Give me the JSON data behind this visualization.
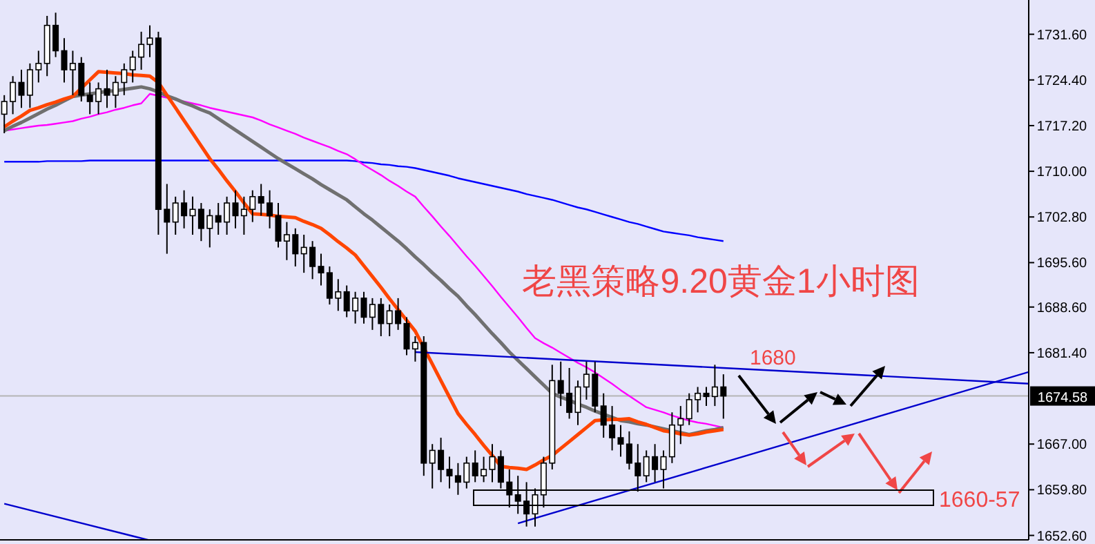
{
  "chart_data": {
    "type": "candlestick",
    "title": "老黑策略9.20黄金1小时图",
    "categories": [
      null,
      null,
      null,
      null,
      null,
      null,
      null,
      null,
      null,
      null,
      null,
      null,
      null,
      null,
      null,
      null,
      null,
      null,
      null,
      null,
      null,
      null,
      null,
      null,
      null,
      null,
      null,
      null,
      null,
      null,
      null,
      null,
      null,
      null,
      null,
      null,
      null,
      null,
      null,
      null,
      null,
      null,
      null,
      null,
      null,
      null,
      null,
      null,
      null,
      null,
      null,
      null,
      null,
      null,
      null,
      null,
      null,
      null,
      null,
      null,
      null,
      null,
      null,
      null,
      null,
      null,
      null,
      null,
      null,
      null,
      null,
      null,
      null,
      null,
      null,
      null,
      null,
      null,
      null,
      null,
      null,
      null,
      null,
      null,
      null
    ],
    "ohlc": [
      [
        1719,
        1722,
        1716,
        1721
      ],
      [
        1721,
        1725,
        1719,
        1724
      ],
      [
        1724,
        1726,
        1720,
        1722
      ],
      [
        1722,
        1727,
        1720,
        1726
      ],
      [
        1726,
        1729,
        1724,
        1727
      ],
      [
        1727,
        1734.5,
        1725,
        1733
      ],
      [
        1733,
        1735,
        1728,
        1729
      ],
      [
        1729,
        1731,
        1724,
        1726
      ],
      [
        1726,
        1729,
        1722,
        1727
      ],
      [
        1727,
        1728,
        1721,
        1722
      ],
      [
        1722,
        1724,
        1719,
        1721
      ],
      [
        1721,
        1724,
        1719,
        1723
      ],
      [
        1723,
        1726,
        1720,
        1722
      ],
      [
        1722,
        1725,
        1720,
        1724
      ],
      [
        1724,
        1727,
        1722,
        1726
      ],
      [
        1726,
        1729,
        1724,
        1728
      ],
      [
        1728,
        1732,
        1726,
        1730
      ],
      [
        1730,
        1733,
        1728,
        1731
      ],
      [
        1731,
        1732,
        1700,
        1704
      ],
      [
        1704,
        1708,
        1697,
        1702
      ],
      [
        1702,
        1706,
        1700,
        1705
      ],
      [
        1705,
        1707,
        1701,
        1703
      ],
      [
        1703,
        1706,
        1700,
        1704
      ],
      [
        1704,
        1705,
        1699,
        1701
      ],
      [
        1701,
        1704,
        1698,
        1703
      ],
      [
        1703,
        1705,
        1700,
        1702
      ],
      [
        1702,
        1706,
        1700,
        1705
      ],
      [
        1705,
        1707,
        1701,
        1703
      ],
      [
        1703,
        1706,
        1700,
        1704
      ],
      [
        1704,
        1707,
        1702,
        1706
      ],
      [
        1706,
        1708,
        1703,
        1705
      ],
      [
        1705,
        1707,
        1701,
        1703
      ],
      [
        1703,
        1705,
        1698,
        1699
      ],
      [
        1699,
        1702,
        1696,
        1700
      ],
      [
        1700,
        1701,
        1695,
        1697
      ],
      [
        1697,
        1700,
        1694,
        1698
      ],
      [
        1698,
        1699,
        1693,
        1695
      ],
      [
        1695,
        1697,
        1692,
        1694
      ],
      [
        1694,
        1695,
        1689,
        1690
      ],
      [
        1690,
        1693,
        1688,
        1691
      ],
      [
        1691,
        1692,
        1687,
        1688
      ],
      [
        1688,
        1691,
        1686,
        1690
      ],
      [
        1690,
        1691,
        1686,
        1687
      ],
      [
        1687,
        1690,
        1685,
        1689
      ],
      [
        1689,
        1690,
        1684,
        1686
      ],
      [
        1686,
        1689,
        1684,
        1688
      ],
      [
        1688,
        1690,
        1685,
        1686
      ],
      [
        1686,
        1687,
        1681,
        1682
      ],
      [
        1682,
        1684,
        1680,
        1683
      ],
      [
        1683,
        1684,
        1662,
        1664
      ],
      [
        1664,
        1667,
        1660,
        1666
      ],
      [
        1666,
        1668,
        1661,
        1663
      ],
      [
        1663,
        1665,
        1660,
        1662
      ],
      [
        1662,
        1664,
        1659,
        1661
      ],
      [
        1661,
        1665,
        1660,
        1664
      ],
      [
        1664,
        1666,
        1661,
        1662
      ],
      [
        1662,
        1665,
        1661,
        1663
      ],
      [
        1663,
        1667,
        1661,
        1665
      ],
      [
        1665,
        1666,
        1660,
        1661
      ],
      [
        1661,
        1663,
        1657,
        1659
      ],
      [
        1659,
        1662,
        1656,
        1658
      ],
      [
        1658,
        1661,
        1654,
        1656
      ],
      [
        1656,
        1660,
        1654,
        1659
      ],
      [
        1659,
        1665,
        1657,
        1664
      ],
      [
        1664,
        1679.5,
        1663,
        1677
      ],
      [
        1677,
        1680,
        1673,
        1675
      ],
      [
        1675,
        1679,
        1671,
        1672
      ],
      [
        1672,
        1677,
        1670,
        1676
      ],
      [
        1676,
        1680,
        1674,
        1678
      ],
      [
        1678,
        1680,
        1672,
        1673
      ],
      [
        1673,
        1675,
        1668,
        1670
      ],
      [
        1670,
        1673,
        1666,
        1668
      ],
      [
        1668,
        1670,
        1665,
        1667
      ],
      [
        1667,
        1669,
        1663,
        1664
      ],
      [
        1664,
        1667,
        1659.5,
        1662
      ],
      [
        1662,
        1666,
        1661,
        1665
      ],
      [
        1665,
        1667,
        1661,
        1663
      ],
      [
        1663,
        1666,
        1660,
        1665
      ],
      [
        1665,
        1672,
        1664,
        1670
      ],
      [
        1670,
        1673,
        1667,
        1671
      ],
      [
        1671,
        1675,
        1670,
        1674
      ],
      [
        1674,
        1676,
        1672,
        1675
      ],
      [
        1675,
        1676,
        1673,
        1674.5
      ],
      [
        1674.5,
        1679.5,
        1673,
        1676
      ],
      [
        1676,
        1678,
        1671,
        1674.58
      ]
    ],
    "series": [
      {
        "type": "line",
        "color": "#0000ff",
        "values": [
          1711.5,
          1711.5,
          1711.5,
          1711.5,
          1711.5,
          1711.6,
          1711.6,
          1711.6,
          1711.6,
          1711.6,
          1711.7,
          1711.7,
          1711.7,
          1711.7,
          1711.7,
          1711.7,
          1711.7,
          1711.7,
          1711.7,
          1711.7,
          1711.7,
          1711.7,
          1711.7,
          1711.7,
          1711.7,
          1711.7,
          1711.7,
          1711.7,
          1711.7,
          1711.7,
          1711.7,
          1711.7,
          1711.7,
          1711.7,
          1711.7,
          1711.7,
          1711.7,
          1711.7,
          1711.7,
          1711.7,
          1711.7,
          1711.6,
          1711.4,
          1711.3,
          1711.1,
          1711,
          1710.8,
          1710.7,
          1710.5,
          1710.2,
          1709.9,
          1709.6,
          1709.3,
          1708.9,
          1708.6,
          1708.3,
          1708,
          1707.7,
          1707.4,
          1707.1,
          1706.8,
          1706.4,
          1706.1,
          1705.8,
          1705.5,
          1705.1,
          1704.7,
          1704.3,
          1704,
          1703.6,
          1703.2,
          1702.8,
          1702.4,
          1702,
          1701.7,
          1701.3,
          1700.9,
          1700.5,
          1700.3,
          1700.1,
          1699.9,
          1699.6,
          1699.4,
          1699.2,
          1699
        ]
      },
      {
        "type": "line",
        "color": "#ff00ff",
        "values": [
          1716.4,
          1716.6,
          1716.8,
          1717,
          1717.2,
          1717.3,
          1717.5,
          1717.7,
          1717.9,
          1718.3,
          1718.6,
          1719,
          1719.3,
          1719.7,
          1720,
          1720.4,
          1720.7,
          1722.2,
          1721.9,
          1721.6,
          1721.3,
          1721,
          1720.7,
          1720.4,
          1720,
          1719.7,
          1719.4,
          1719.1,
          1718.8,
          1718.5,
          1718,
          1717.4,
          1716.9,
          1716.4,
          1715.9,
          1715.3,
          1714.8,
          1714.3,
          1713.8,
          1713.2,
          1712.7,
          1711.9,
          1711,
          1710.2,
          1709.4,
          1708.5,
          1707.7,
          1706.8,
          1706,
          1704.4,
          1702.9,
          1701.3,
          1699.8,
          1698.2,
          1696.6,
          1695.1,
          1693.5,
          1691.9,
          1690.2,
          1688.6,
          1687,
          1685.3,
          1683.7,
          1682.9,
          1682.2,
          1681.4,
          1680.6,
          1679.8,
          1679.1,
          1678.3,
          1677.4,
          1676.5,
          1675.5,
          1674.6,
          1673.7,
          1672.8,
          1672.4,
          1672,
          1671.5,
          1671.1,
          1670.7,
          1670.4,
          1670.2,
          1669.9,
          1669.6
        ]
      },
      {
        "type": "line",
        "color": "#707070",
        "values": [
          1716.4,
          1717.1,
          1717.7,
          1718.4,
          1719.1,
          1719.8,
          1720.4,
          1721.1,
          1721.8,
          1722,
          1722.2,
          1722.4,
          1722.6,
          1722.7,
          1722.9,
          1723.1,
          1723.3,
          1723,
          1722.5,
          1721.9,
          1721.4,
          1720.8,
          1720.3,
          1719.7,
          1719.2,
          1718.3,
          1717.4,
          1716.5,
          1715.6,
          1714.7,
          1713.8,
          1712.9,
          1712,
          1711.2,
          1710.4,
          1709.6,
          1708.8,
          1707.9,
          1707.1,
          1706.3,
          1705.5,
          1704.4,
          1703.3,
          1702.3,
          1701.2,
          1700.1,
          1699,
          1697.8,
          1696.5,
          1695.3,
          1694,
          1692.8,
          1691.5,
          1690.3,
          1688.8,
          1687.4,
          1685.9,
          1684.4,
          1683,
          1681.5,
          1680.2,
          1678.9,
          1677.6,
          1676.3,
          1675,
          1674.4,
          1673.9,
          1673.3,
          1672.8,
          1672.2,
          1671.7,
          1671.2,
          1670.7,
          1670.5,
          1670.2,
          1670,
          1669.7,
          1669.4,
          1669.1,
          1668.8,
          1668.5,
          1668.8,
          1669.1,
          1669.3,
          1669.6
        ]
      },
      {
        "type": "line",
        "color": "#ff4500",
        "values": [
          1717,
          1717.9,
          1718.7,
          1719.6,
          1720,
          1720.5,
          1720.9,
          1721.4,
          1721.8,
          1723.1,
          1724.4,
          1725.7,
          1725.6,
          1725.5,
          1725.4,
          1725.2,
          1725.1,
          1725,
          1724,
          1722,
          1720,
          1718,
          1716,
          1714,
          1712,
          1710.3,
          1708.5,
          1706.8,
          1705,
          1703.3,
          1703.2,
          1703.1,
          1702.9,
          1702.8,
          1702.7,
          1702.1,
          1701.6,
          1701,
          1700,
          1698.9,
          1697.9,
          1696.8,
          1695.1,
          1693.4,
          1691.7,
          1689.9,
          1688.2,
          1686.5,
          1684.8,
          1682.2,
          1679.6,
          1677,
          1674.4,
          1671.8,
          1670.1,
          1668.5,
          1666.8,
          1665.2,
          1663.5,
          1663.3,
          1663.2,
          1663,
          1663.7,
          1664.5,
          1665.2,
          1666.3,
          1667.4,
          1668.5,
          1669.6,
          1670.7,
          1670.8,
          1670.9,
          1670.9,
          1671,
          1670.5,
          1670.1,
          1669.6,
          1669.1,
          1668.9,
          1668.6,
          1668.4,
          1668.6,
          1668.9,
          1669.1,
          1669.3
        ]
      },
      {
        "type": "line",
        "color": "#0000cd",
        "values": [
          null,
          null,
          null,
          null,
          null,
          null,
          null,
          null,
          null,
          null,
          null,
          null,
          null,
          null,
          null,
          null,
          null,
          null,
          null,
          null,
          null,
          null,
          null,
          null,
          null,
          null,
          null,
          null,
          null,
          null,
          null,
          null,
          null,
          null,
          null,
          null,
          null,
          null,
          null,
          null,
          null,
          null,
          null,
          null,
          null,
          null,
          null,
          null,
          1681.5,
          null,
          null,
          null,
          null,
          null,
          null,
          null,
          null,
          null,
          null,
          null,
          null,
          null,
          null,
          null,
          null,
          null,
          null,
          null,
          null,
          null,
          null,
          null,
          null,
          null,
          null,
          null,
          null,
          null,
          null,
          null,
          null,
          null,
          null,
          null,
          1679.0
        ]
      },
      {
        "type": "line",
        "color": "#0000cd",
        "values": [
          null,
          null,
          null,
          null,
          null,
          null,
          null,
          null,
          null,
          null,
          null,
          null,
          null,
          null,
          null,
          null,
          null,
          null,
          null,
          null,
          null,
          null,
          null,
          null,
          null,
          null,
          null,
          null,
          null,
          null,
          null,
          null,
          null,
          null,
          null,
          null,
          null,
          null,
          null,
          null,
          null,
          null,
          null,
          null,
          null,
          null,
          null,
          null,
          null,
          null,
          null,
          null,
          null,
          null,
          null,
          null,
          null,
          null,
          null,
          null,
          1654.5,
          null,
          null,
          null,
          null,
          null,
          null,
          null,
          null,
          null,
          null,
          null,
          null,
          null,
          null,
          null,
          null,
          null,
          null,
          null,
          null,
          null,
          null,
          null,
          1664.1
        ]
      },
      {
        "type": "line",
        "color": "#0000cd",
        "values": [
          1657.6,
          null,
          null,
          null,
          null,
          null,
          null,
          null,
          null,
          null,
          null,
          null,
          null,
          null,
          null,
          1652.5,
          null,
          null,
          null,
          null,
          null,
          null,
          null,
          null,
          null,
          null,
          null,
          null,
          null,
          null,
          null,
          null,
          null,
          null,
          null,
          null,
          null,
          null,
          null,
          null,
          null,
          null,
          null,
          null,
          null,
          null,
          null,
          null,
          null,
          null,
          null,
          null,
          null,
          null,
          null,
          null,
          null,
          null,
          null,
          null,
          null,
          null,
          null,
          null,
          null,
          null,
          null,
          null,
          null,
          null,
          null,
          null,
          null,
          null,
          null,
          null,
          null,
          null,
          null,
          null,
          null,
          null,
          null,
          null,
          null
        ]
      }
    ],
    "ylim": [
      1651.9,
      1737.0
    ],
    "yticks": [
      {
        "value": 1652.6,
        "label": "1652.60"
      },
      {
        "value": 1659.8,
        "label": "1659.80"
      },
      {
        "value": 1667,
        "label": "1667.00"
      },
      {
        "value": 1681.4,
        "label": "1681.40"
      },
      {
        "value": 1688.6,
        "label": "1688.60"
      },
      {
        "value": 1695.6,
        "label": "1695.60"
      },
      {
        "value": 1702.8,
        "label": "1702.80"
      },
      {
        "value": 1710,
        "label": "1710.00"
      },
      {
        "value": 1717.2,
        "label": "1717.20"
      },
      {
        "value": 1724.4,
        "label": "1724.40"
      },
      {
        "value": 1731.6,
        "label": "1731.60"
      }
    ],
    "tick_labels": "y",
    "ref_lines": [
      {
        "axis": "y",
        "value": 1674.58,
        "label": "1674.58",
        "color": "#b4b4b4"
      }
    ],
    "annotations": [
      "1680",
      "1660-57"
    ],
    "grid": false
  }
}
